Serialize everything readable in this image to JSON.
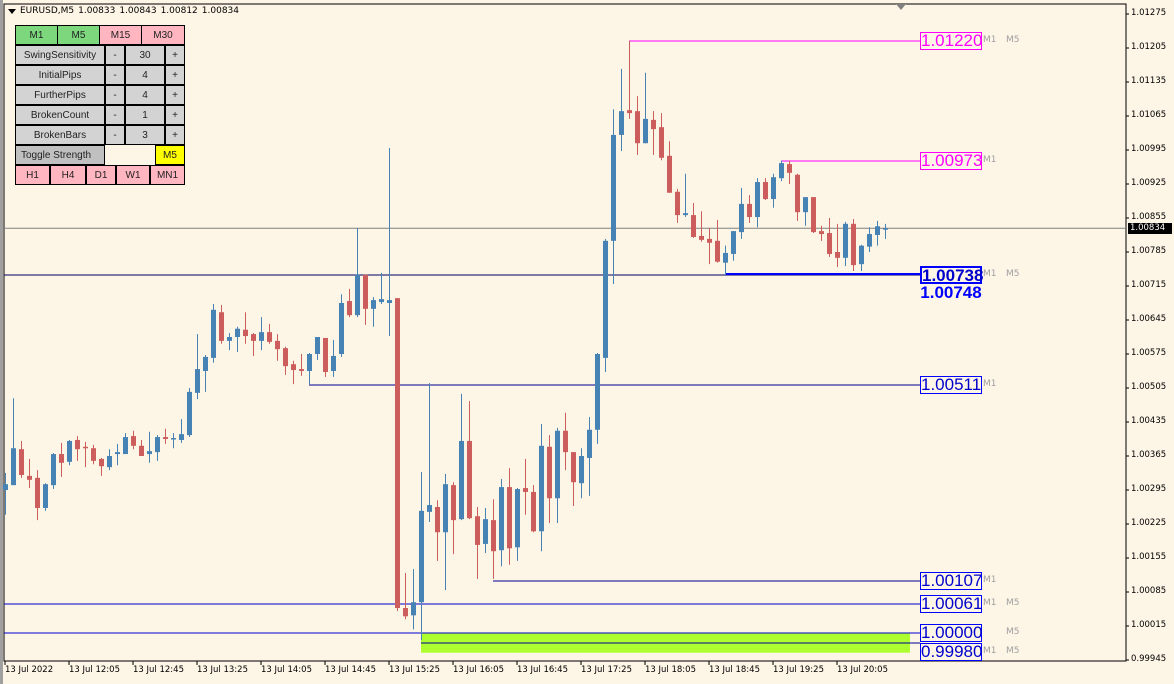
{
  "header": {
    "symbol": "EURUSD,M5",
    "open": "1.00833",
    "high": "1.00843",
    "low": "1.00812",
    "close": "1.00834"
  },
  "panel": {
    "top_timeframes": [
      {
        "label": "M1",
        "state": "active"
      },
      {
        "label": "M5",
        "state": "active"
      },
      {
        "label": "M15",
        "state": "inactive"
      },
      {
        "label": "M30",
        "state": "inactive"
      }
    ],
    "params": [
      {
        "label": "SwingSensitivity",
        "minus": "-",
        "value": "30",
        "plus": "+"
      },
      {
        "label": "InitialPips",
        "minus": "-",
        "value": "4",
        "plus": "+"
      },
      {
        "label": "FurtherPips",
        "minus": "-",
        "value": "4",
        "plus": "+"
      },
      {
        "label": "BrokenCount",
        "minus": "-",
        "value": "1",
        "plus": "+"
      },
      {
        "label": "BrokenBars",
        "minus": "-",
        "value": "3",
        "plus": "+"
      }
    ],
    "toggle_label": "Toggle Strength",
    "toggle_value": "M5",
    "bottom_timeframes": [
      {
        "label": "H1"
      },
      {
        "label": "H4"
      },
      {
        "label": "D1"
      },
      {
        "label": "W1"
      },
      {
        "label": "MN1"
      }
    ]
  },
  "colors": {
    "bull": "#4682b4",
    "bear": "#cd5c5c",
    "background": "#fdf5e6",
    "resistance": "#ff00ff",
    "support": "#0000cd",
    "zone": "#adff2f",
    "active_tf": "#7dd87d",
    "inactive_tf": "#ffb6c1",
    "toggle": "#ffff00"
  },
  "price_axis": [
    "1.01275",
    "1.01205",
    "1.01135",
    "1.01065",
    "1.00995",
    "1.00925",
    "1.00855",
    "1.00785",
    "1.00715",
    "1.00645",
    "1.00575",
    "1.00505",
    "1.00435",
    "1.00365",
    "1.00295",
    "1.00225",
    "1.00155",
    "1.00085",
    "1.00015",
    "0.99945"
  ],
  "current_price": "1.00834",
  "time_axis": [
    "13 Jul 2022",
    "13 Jul 12:05",
    "13 Jul 12:45",
    "13 Jul 13:25",
    "13 Jul 14:05",
    "13 Jul 14:45",
    "13 Jul 15:25",
    "13 Jul 16:05",
    "13 Jul 16:45",
    "13 Jul 17:25",
    "13 Jul 18:05",
    "13 Jul 18:45",
    "13 Jul 19:25",
    "13 Jul 20:05"
  ],
  "levels": [
    {
      "price": 1.0122,
      "label": "1.01220",
      "type": "resistance",
      "from_bar": 78,
      "tags": [
        "M1",
        "M5"
      ]
    },
    {
      "price": 1.00973,
      "label": "1.00973",
      "type": "resistance",
      "from_bar": 97,
      "tags": [
        "M1",
        ""
      ]
    },
    {
      "price": 1.00738,
      "label": "1.00738",
      "overlay": "1.00748",
      "type": "support-strong",
      "from_bar": 90,
      "tags": [
        "M1",
        "M5"
      ]
    },
    {
      "price": 1.00511,
      "label": "1.00511",
      "type": "support",
      "from_bar": 38,
      "tags": [
        "M1",
        ""
      ]
    },
    {
      "price": 1.00107,
      "label": "1.00107",
      "type": "support",
      "from_bar": 61,
      "tags": [
        "M1",
        ""
      ]
    },
    {
      "price": 1.00061,
      "label": "1.00061",
      "type": "support",
      "from_bar": 0,
      "tags": [
        "M1",
        "M5"
      ]
    },
    {
      "price": 1.0,
      "label": "1.00000",
      "type": "support",
      "from_bar": 0,
      "tags": [
        "",
        "M5"
      ]
    },
    {
      "price": 0.9998,
      "label": "0.99980",
      "type": "support",
      "from_bar": 52,
      "tags": [
        "M1",
        "M5"
      ]
    }
  ],
  "zone": {
    "from_price": 1.0,
    "to_price": 0.9996,
    "from_bar": 52
  },
  "chart_data": {
    "type": "candlestick",
    "timeframe": "M5",
    "ylim": [
      0.99945,
      1.01275
    ],
    "ohlc": [
      [
        1.00295,
        1.0033,
        1.00244,
        1.00307
      ],
      [
        1.00305,
        1.00484,
        1.00305,
        1.00381
      ],
      [
        1.00379,
        1.00396,
        1.0032,
        1.00326
      ],
      [
        1.00324,
        1.00359,
        1.00299,
        1.00316
      ],
      [
        1.0032,
        1.00336,
        1.00233,
        1.00258
      ],
      [
        1.00258,
        1.00309,
        1.00252,
        1.00307
      ],
      [
        1.00305,
        1.00371,
        1.00297,
        1.00369
      ],
      [
        1.00369,
        1.00392,
        1.00322,
        1.00351
      ],
      [
        1.00353,
        1.00398,
        1.00346,
        1.00396
      ],
      [
        1.00398,
        1.00406,
        1.00355,
        1.00379
      ],
      [
        1.00384,
        1.00394,
        1.00342,
        1.00381
      ],
      [
        1.00381,
        1.00388,
        1.00348,
        1.00355
      ],
      [
        1.00359,
        1.00361,
        1.00324,
        1.00344
      ],
      [
        1.00342,
        1.00379,
        1.00336,
        1.00365
      ],
      [
        1.00369,
        1.0039,
        1.00346,
        1.00373
      ],
      [
        1.00369,
        1.00412,
        1.00369,
        1.00404
      ],
      [
        1.00406,
        1.00417,
        1.00379,
        1.00386
      ],
      [
        1.00386,
        1.00398,
        1.00365,
        1.00365
      ],
      [
        1.00369,
        1.00415,
        1.00351,
        1.00375
      ],
      [
        1.00373,
        1.00408,
        1.00355,
        1.00404
      ],
      [
        1.00404,
        1.00421,
        1.0039,
        1.004
      ],
      [
        1.004,
        1.00412,
        1.00381,
        1.00402
      ],
      [
        1.00398,
        1.00441,
        1.00392,
        1.0041
      ],
      [
        1.00408,
        1.00505,
        1.00404,
        1.00497
      ],
      [
        1.00495,
        1.00616,
        1.00482,
        1.00544
      ],
      [
        1.0054,
        1.00573,
        1.00497,
        1.00569
      ],
      [
        1.00567,
        1.00678,
        1.00557,
        1.00666
      ],
      [
        1.00661,
        1.00676,
        1.00596,
        1.00602
      ],
      [
        1.00602,
        1.00618,
        1.00583,
        1.0061
      ],
      [
        1.0061,
        1.00631,
        1.00579,
        1.00627
      ],
      [
        1.00625,
        1.00661,
        1.00596,
        1.00612
      ],
      [
        1.00616,
        1.00618,
        1.00571,
        1.00602
      ],
      [
        1.00602,
        1.00651,
        1.00583,
        1.0062
      ],
      [
        1.0062,
        1.00637,
        1.00596,
        1.006
      ],
      [
        1.00602,
        1.00616,
        1.00561,
        1.00585
      ],
      [
        1.00587,
        1.0059,
        1.00532,
        1.0055
      ],
      [
        1.00554,
        1.00561,
        1.00513,
        1.00542
      ],
      [
        1.00544,
        1.00575,
        1.0053,
        1.0054
      ],
      [
        1.0054,
        1.00577,
        1.00513,
        1.00575
      ],
      [
        1.00575,
        1.0061,
        1.00563,
        1.0061
      ],
      [
        1.00608,
        1.00608,
        1.00528,
        1.00538
      ],
      [
        1.0054,
        1.00604,
        1.00528,
        1.00571
      ],
      [
        1.00575,
        1.00698,
        1.00569,
        1.0068
      ],
      [
        1.00684,
        1.00709,
        1.00651,
        1.00655
      ],
      [
        1.00655,
        1.00834,
        1.00651,
        1.00738
      ],
      [
        1.00738,
        1.00738,
        1.00635,
        1.00668
      ],
      [
        1.00668,
        1.00692,
        1.00631,
        1.00686
      ],
      [
        1.00682,
        1.00742,
        1.00678,
        1.00688
      ],
      [
        1.0068,
        1.00999,
        1.00612,
        1.00686
      ],
      [
        1.0069,
        1.0069,
        1.00046,
        1.00052
      ],
      [
        1.00052,
        1.00124,
        1.00029,
        1.00035
      ],
      [
        1.00037,
        1.00132,
        1.00008,
        1.00064
      ],
      [
        1.00064,
        1.00332,
        0.99986,
        1.00252
      ],
      [
        1.0025,
        1.00515,
        1.00229,
        1.00264
      ],
      [
        1.0026,
        1.00274,
        1.00149,
        1.00208
      ],
      [
        1.00208,
        1.00328,
        1.00089,
        1.00307
      ],
      [
        1.00305,
        1.00311,
        1.00163,
        1.00233
      ],
      [
        1.00235,
        1.00493,
        1.00233,
        1.00396
      ],
      [
        1.00396,
        1.00478,
        1.00235,
        1.00237
      ],
      [
        1.00241,
        1.0026,
        1.00112,
        1.00182
      ],
      [
        1.00184,
        1.00258,
        1.00165,
        1.00235
      ],
      [
        1.00233,
        1.00276,
        1.00112,
        1.00169
      ],
      [
        1.00171,
        1.00318,
        1.00138,
        1.00301
      ],
      [
        1.00301,
        1.0034,
        1.00141,
        1.00175
      ],
      [
        1.00177,
        1.00299,
        1.00149,
        1.00297
      ],
      [
        1.00299,
        1.00359,
        1.00244,
        1.00291
      ],
      [
        1.00291,
        1.00305,
        1.00208,
        1.0021
      ],
      [
        1.0021,
        1.00431,
        1.00169,
        1.00386
      ],
      [
        1.00384,
        1.00408,
        1.00227,
        1.00278
      ],
      [
        1.00278,
        1.00423,
        1.00227,
        1.00417
      ],
      [
        1.00417,
        1.00454,
        1.00336,
        1.00373
      ],
      [
        1.00373,
        1.00373,
        1.00262,
        1.00311
      ],
      [
        1.00309,
        1.00381,
        1.00278,
        1.00365
      ],
      [
        1.00361,
        1.00445,
        1.00283,
        1.00419
      ],
      [
        1.00419,
        1.00577,
        1.0039,
        1.00575
      ],
      [
        1.00567,
        1.00812,
        1.00538,
        1.00808
      ],
      [
        1.00808,
        1.01079,
        1.00719,
        1.01026
      ],
      [
        1.01026,
        1.01162,
        1.00993,
        1.01075
      ],
      [
        1.01077,
        1.0122,
        1.01059,
        1.01071
      ],
      [
        1.01075,
        1.01106,
        1.00985,
        1.01009
      ],
      [
        1.01009,
        1.01154,
        1.01009,
        1.01059
      ],
      [
        1.01057,
        1.01075,
        1.00985,
        1.01038
      ],
      [
        1.01042,
        1.01071,
        1.00974,
        1.00979
      ],
      [
        1.00983,
        1.01013,
        1.00907,
        1.00907
      ],
      [
        1.00909,
        1.00915,
        1.00845,
        1.00861
      ],
      [
        1.00861,
        1.00946,
        1.00857,
        1.00865
      ],
      [
        1.00861,
        1.00886,
        1.00814,
        1.00816
      ],
      [
        1.00818,
        1.00869,
        1.00806,
        1.0081
      ],
      [
        1.00812,
        1.00834,
        1.0076,
        1.00804
      ],
      [
        1.00808,
        1.00851,
        1.00763,
        1.00765
      ],
      [
        1.00763,
        1.00798,
        1.00738,
        1.00783
      ],
      [
        1.00781,
        1.00828,
        1.00767,
        1.00828
      ],
      [
        1.00826,
        1.00917,
        1.00812,
        1.00884
      ],
      [
        1.00884,
        1.00902,
        1.00845,
        1.00857
      ],
      [
        1.00857,
        1.00937,
        1.00836,
        1.00929
      ],
      [
        1.00929,
        1.00937,
        1.00892,
        1.00894
      ],
      [
        1.00894,
        1.00946,
        1.00876,
        1.00939
      ],
      [
        1.00937,
        1.00973,
        1.00931,
        1.00968
      ],
      [
        1.00966,
        1.00973,
        1.00925,
        1.00948
      ],
      [
        1.00944,
        1.00946,
        1.00849,
        1.00867
      ],
      [
        1.00867,
        1.00898,
        1.00839,
        1.00898
      ],
      [
        1.00898,
        1.00898,
        1.00824,
        1.00826
      ],
      [
        1.00828,
        1.00839,
        1.00808,
        1.00822
      ],
      [
        1.00824,
        1.00855,
        1.00775,
        1.00781
      ],
      [
        1.00785,
        1.00843,
        1.00754,
        1.00773
      ],
      [
        1.00773,
        1.00847,
        1.00756,
        1.00843
      ],
      [
        1.00843,
        1.00853,
        1.00746,
        1.00758
      ],
      [
        1.0076,
        1.008,
        1.00746,
        1.00798
      ],
      [
        1.00796,
        1.00836,
        1.00785,
        1.00822
      ],
      [
        1.0082,
        1.00849,
        1.00798,
        1.00838
      ],
      [
        1.00833,
        1.00843,
        1.00812,
        1.00834
      ]
    ]
  }
}
